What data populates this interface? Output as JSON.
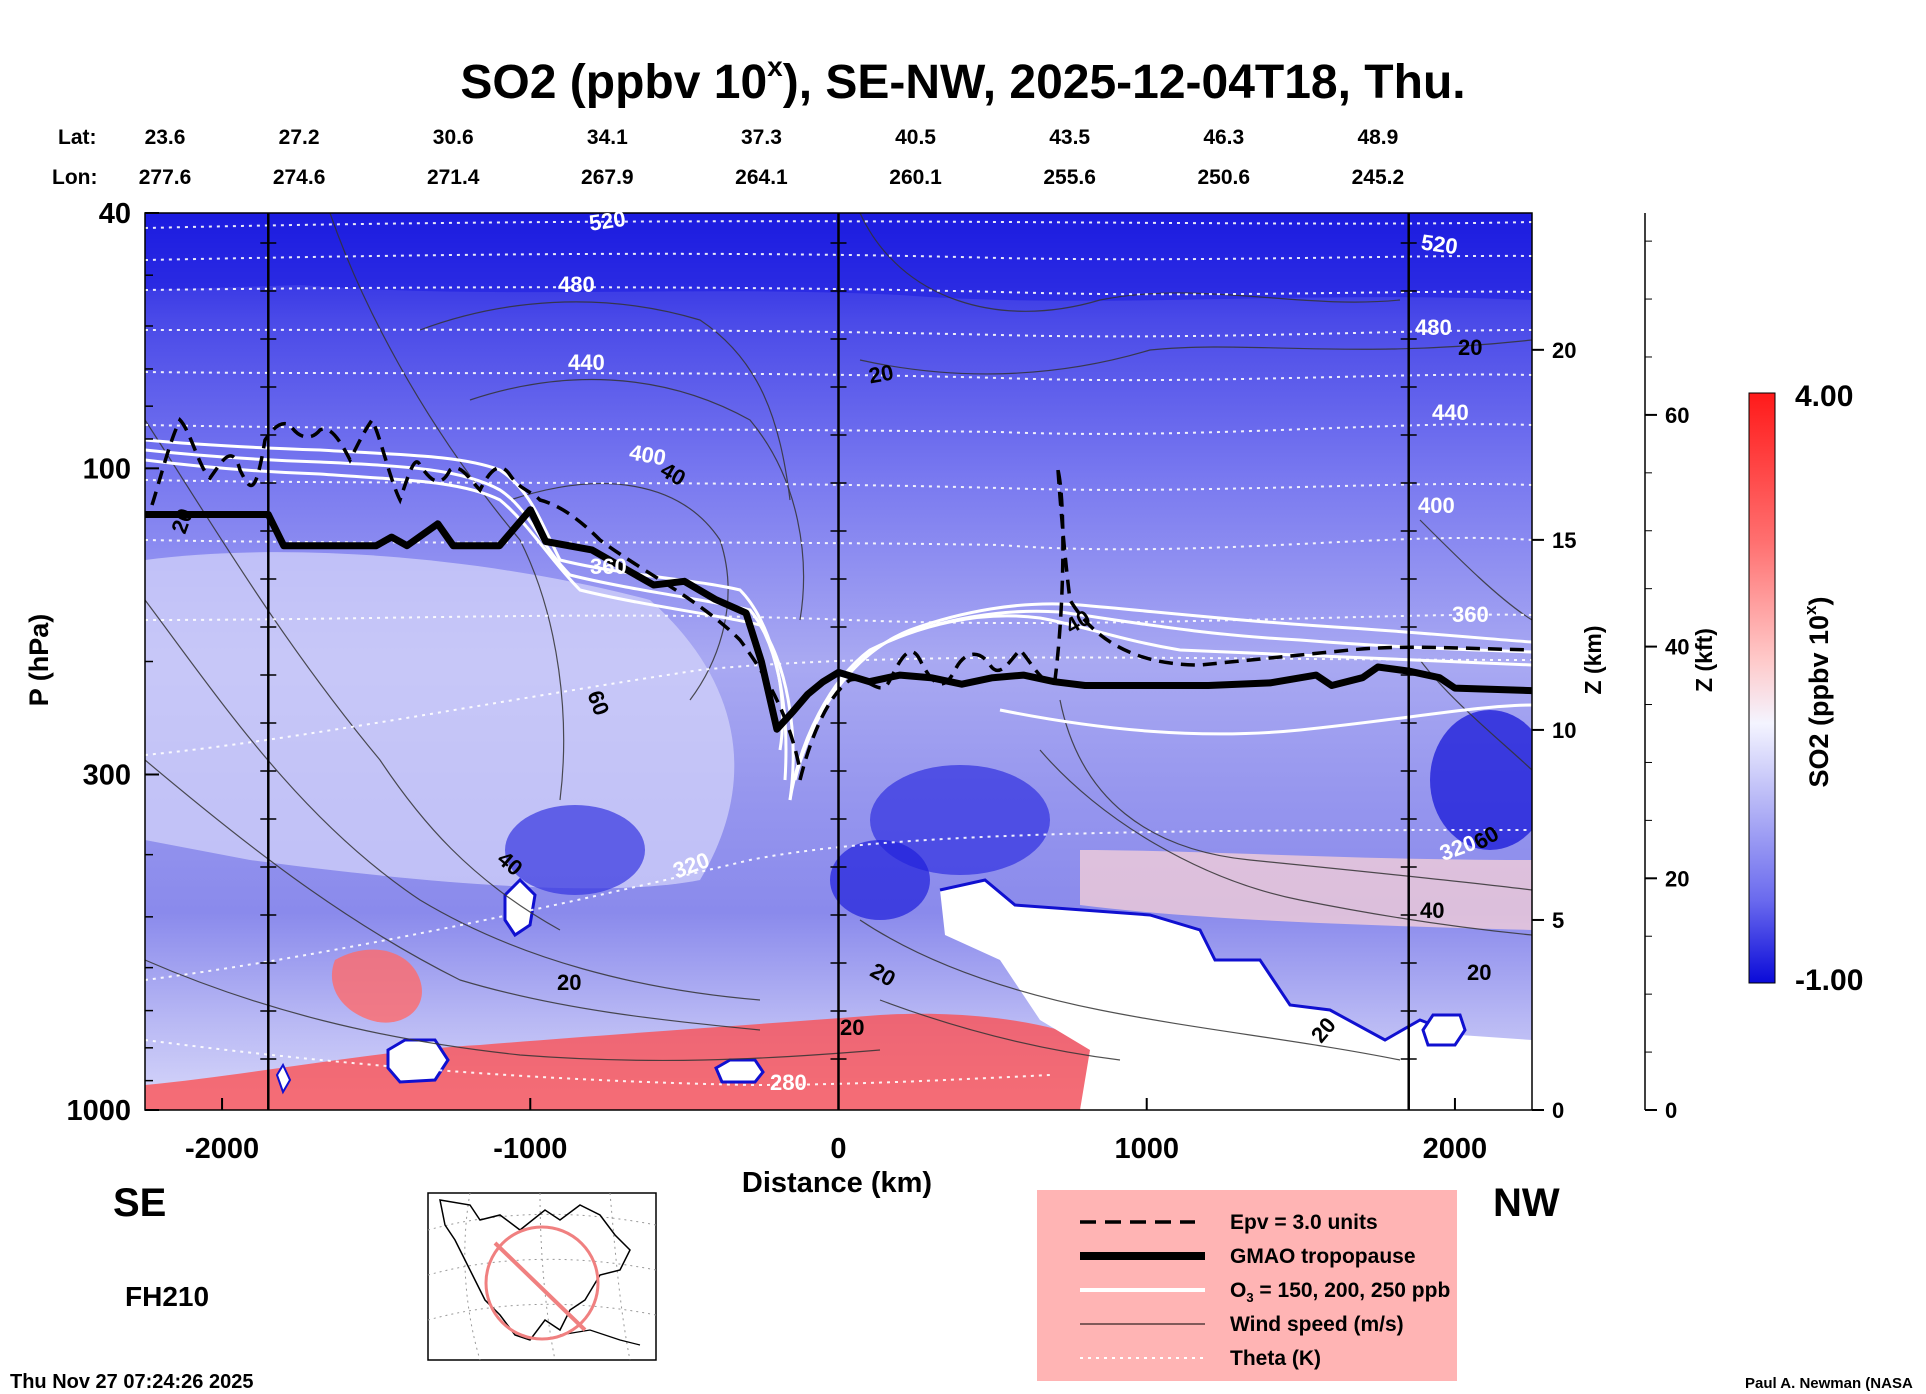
{
  "chart_data": {
    "type": "heatmap",
    "title": "SO2 (ppbv 10",
    "title_sup": "x",
    "title_rest": "), SE-NW, 2025-12-04T18, Thu.",
    "xlabel": "Distance (km)",
    "ylabel": "P (hPa)",
    "z_km_label": "Z (km)",
    "z_kft_label": "Z (kft)",
    "colorbar_label": "SO2 (ppbv 10",
    "colorbar_label_sup": "x",
    "colorbar_label_end": ")",
    "colorbar_range": [
      -1.0,
      4.0
    ],
    "colorbar_max_label": "4.00",
    "colorbar_min_label": "-1.00",
    "x_ticks": [
      -2000,
      -1000,
      0,
      1000,
      2000
    ],
    "x_range": [
      -2250,
      2250
    ],
    "y_ticks": [
      40,
      100,
      300,
      1000
    ],
    "y_range": [
      1000,
      40
    ],
    "z_km_ticks": [
      0,
      5,
      10,
      15,
      20
    ],
    "z_kft_ticks": [
      0,
      20,
      40,
      60
    ],
    "direction_left": "SE",
    "direction_right": "NW",
    "forecast_hour": "FH210",
    "timestamp": "Thu Nov 27 07:24:26 2025",
    "credit": "Paul A. Newman (NASA",
    "lat_label": "Lat:",
    "lon_label": "Lon:",
    "positions": [
      {
        "distance": -2250,
        "lat": "23.6",
        "lon": "277.6"
      },
      {
        "distance": -1750,
        "lat": "27.2",
        "lon": "274.6"
      },
      {
        "distance": -1250,
        "lat": "30.6",
        "lon": "271.4"
      },
      {
        "distance": -750,
        "lat": "34.1",
        "lon": "267.9"
      },
      {
        "distance": -250,
        "lat": "37.3",
        "lon": "264.1"
      },
      {
        "distance": 250,
        "lat": "40.5",
        "lon": "260.1"
      },
      {
        "distance": 750,
        "lat": "43.5",
        "lon": "255.6"
      },
      {
        "distance": 1250,
        "lat": "46.3",
        "lon": "250.6"
      },
      {
        "distance": 1750,
        "lat": "48.9",
        "lon": "245.2"
      }
    ],
    "vertical_markers_km": [
      -1850,
      0,
      1850
    ],
    "tropopause": {
      "name": "GMAO tropopause",
      "x": [
        -2250,
        -1850,
        -1800,
        -1500,
        -1450,
        -1400,
        -1300,
        -1250,
        -1100,
        -1000,
        -950,
        -800,
        -600,
        -500,
        -400,
        -300,
        -250,
        -200,
        -150,
        -100,
        -50,
        0,
        100,
        200,
        300,
        400,
        500,
        600,
        700,
        800,
        1000,
        1200,
        1400,
        1550,
        1600,
        1700,
        1750,
        1850,
        1950,
        2000,
        2250
      ],
      "p": [
        118,
        118,
        132,
        132,
        128,
        132,
        122,
        132,
        132,
        116,
        130,
        134,
        152,
        150,
        160,
        168,
        200,
        255,
        240,
        225,
        215,
        208,
        215,
        210,
        212,
        217,
        212,
        210,
        215,
        218,
        218,
        218,
        216,
        210,
        218,
        212,
        204,
        207,
        212,
        220,
        222
      ]
    },
    "ozone_contours": {
      "name": "O3 = 150, 200, 250 ppb",
      "levels_ppb": [
        150,
        200,
        250
      ]
    },
    "epv_contour": {
      "name": "Epv = 3.0 units",
      "value": 3.0,
      "unit": "units"
    },
    "wind_speed": {
      "name": "Wind speed (m/s)",
      "labels": [
        "20",
        "20",
        "20",
        "20",
        "20",
        "20",
        "20",
        "20",
        "20",
        "40",
        "40",
        "40",
        "40",
        "60",
        "60"
      ]
    },
    "theta": {
      "name": "Theta (K)",
      "levels": [
        {
          "label": "520"
        },
        {
          "label": "480"
        },
        {
          "label": "440"
        },
        {
          "label": "400"
        },
        {
          "label": "360"
        },
        {
          "label": "320"
        },
        {
          "label": "280"
        },
        {
          "label": "520"
        },
        {
          "label": "480"
        },
        {
          "label": "440"
        },
        {
          "label": "400"
        },
        {
          "label": "360"
        },
        {
          "label": "320"
        }
      ]
    },
    "legend": [
      {
        "style": "dashed",
        "label": "Epv = 3.0 units"
      },
      {
        "style": "thick",
        "label": "GMAO tropopause"
      },
      {
        "style": "white",
        "label": "O",
        "sub": "3",
        "label_rest": " = 150, 200, 250 ppb"
      },
      {
        "style": "thin",
        "label": "Wind speed (m/s)"
      },
      {
        "style": "dotted",
        "label": "Theta (K)"
      }
    ]
  }
}
